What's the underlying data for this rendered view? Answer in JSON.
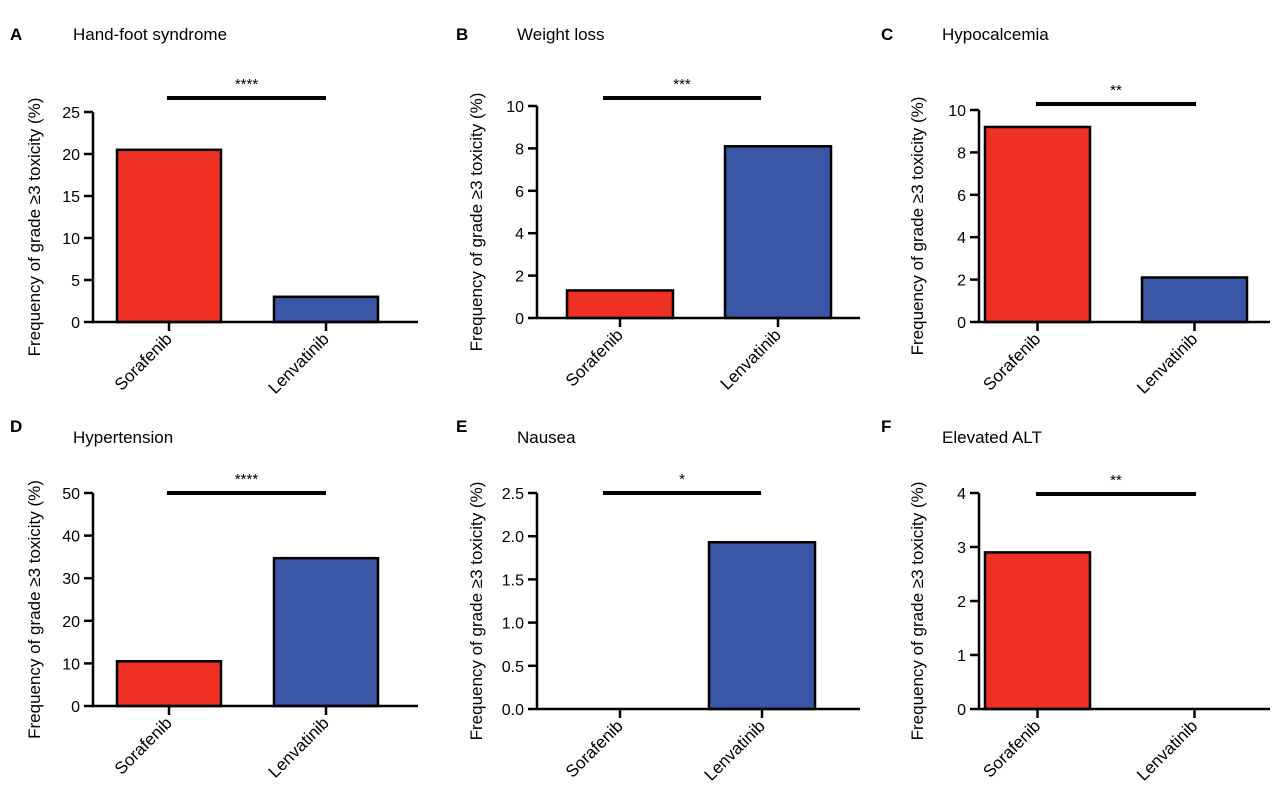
{
  "figure": {
    "panels": [
      {
        "letter": "A",
        "title": "Hand-foot syndrome"
      },
      {
        "letter": "B",
        "title": "Weight loss"
      },
      {
        "letter": "C",
        "title": "Hypocalcemia"
      },
      {
        "letter": "D",
        "title": "Hypertension"
      },
      {
        "letter": "E",
        "title": "Nausea"
      },
      {
        "letter": "F",
        "title": "Elevated ALT"
      }
    ]
  },
  "colors": {
    "sorafenib": "#ee3124",
    "lenvatinib": "#3a56a6"
  },
  "chart_data": [
    {
      "type": "bar",
      "title": "Hand-foot syndrome",
      "ylabel": "Frequency of grade ≥3 toxicity (%)",
      "categories": [
        "Sorafenib",
        "Lenvatinib"
      ],
      "values": [
        20.5,
        3.0
      ],
      "ylim": [
        0,
        25
      ],
      "yticks": [
        0,
        5,
        10,
        15,
        20,
        25
      ],
      "yticklabels": [
        "0",
        "5",
        "10",
        "15",
        "20",
        "25"
      ],
      "significance": "****"
    },
    {
      "type": "bar",
      "title": "Weight loss",
      "ylabel": "Frequency of grade ≥3 toxicity (%)",
      "categories": [
        "Sorafenib",
        "Lenvatinib"
      ],
      "values": [
        1.3,
        8.1
      ],
      "ylim": [
        0,
        10
      ],
      "yticks": [
        0,
        2,
        4,
        6,
        8,
        10
      ],
      "yticklabels": [
        "0",
        "2",
        "4",
        "6",
        "8",
        "10"
      ],
      "significance": "***"
    },
    {
      "type": "bar",
      "title": "Hypocalcemia",
      "ylabel": "Frequency of grade ≥3 toxicity (%)",
      "categories": [
        "Sorafenib",
        "Lenvatinib"
      ],
      "values": [
        9.2,
        2.1
      ],
      "ylim": [
        0,
        10
      ],
      "yticks": [
        0,
        2,
        4,
        6,
        8,
        10
      ],
      "yticklabels": [
        "0",
        "2",
        "4",
        "6",
        "8",
        "10"
      ],
      "significance": "**"
    },
    {
      "type": "bar",
      "title": "Hypertension",
      "ylabel": "Frequency of grade ≥3 toxicity (%)",
      "categories": [
        "Sorafenib",
        "Lenvatinib"
      ],
      "values": [
        10.5,
        34.7
      ],
      "ylim": [
        0,
        50
      ],
      "yticks": [
        0,
        10,
        20,
        30,
        40,
        50
      ],
      "yticklabels": [
        "0",
        "10",
        "20",
        "30",
        "40",
        "50"
      ],
      "significance": "****"
    },
    {
      "type": "bar",
      "title": "Nausea",
      "ylabel": "Frequency of grade ≥3 toxicity (%)",
      "categories": [
        "Sorafenib",
        "Lenvatinib"
      ],
      "values": [
        0.0,
        1.93
      ],
      "ylim": [
        0,
        2.5
      ],
      "yticks": [
        0,
        0.5,
        1,
        1.5,
        2,
        2.5
      ],
      "yticklabels": [
        "0.0",
        "0.5",
        "1.0",
        "1.5",
        "2.0",
        "2.5"
      ],
      "significance": "*"
    },
    {
      "type": "bar",
      "title": "Elevated ALT",
      "ylabel": "Frequency of grade ≥3 toxicity (%)",
      "categories": [
        "Sorafenib",
        "Lenvatinib"
      ],
      "values": [
        2.9,
        0.0
      ],
      "ylim": [
        0,
        4
      ],
      "yticks": [
        0,
        1,
        2,
        3,
        4
      ],
      "yticklabels": [
        "0",
        "1",
        "2",
        "3",
        "4"
      ],
      "significance": "**"
    }
  ]
}
